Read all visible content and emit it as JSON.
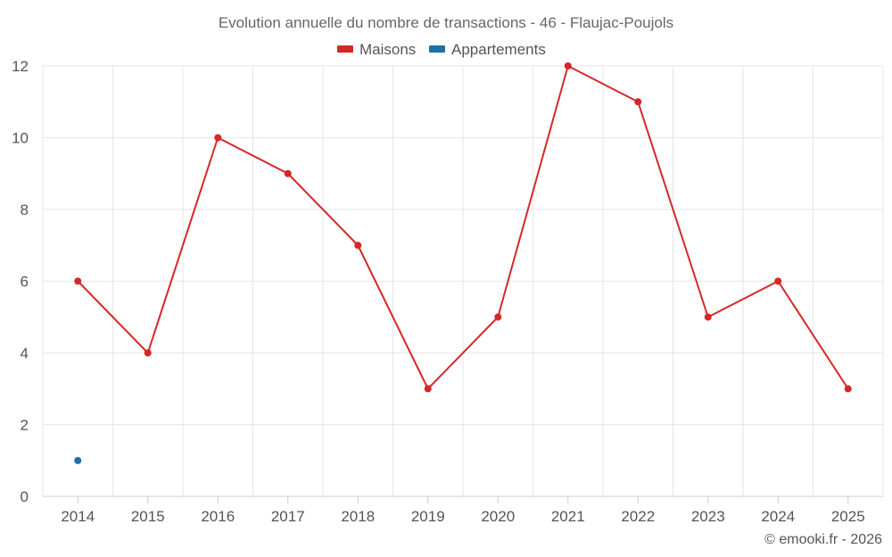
{
  "chart_data": {
    "type": "line",
    "title": "Evolution annuelle du nombre de transactions - 46 - Flaujac-Poujols",
    "categories": [
      "2014",
      "2015",
      "2016",
      "2017",
      "2018",
      "2019",
      "2020",
      "2021",
      "2022",
      "2023",
      "2024",
      "2025"
    ],
    "series": [
      {
        "name": "Maisons",
        "color": "#d62728",
        "values": [
          6,
          4,
          10,
          9,
          7,
          3,
          5,
          12,
          11,
          5,
          6,
          3
        ]
      },
      {
        "name": "Appartements",
        "color": "#1f6fa8",
        "values": [
          1,
          null,
          null,
          null,
          null,
          null,
          null,
          null,
          null,
          null,
          null,
          null
        ]
      }
    ],
    "ylim": [
      0,
      12
    ],
    "yticks": [
      0,
      2,
      4,
      6,
      8,
      10,
      12
    ],
    "grid": true,
    "legend_position": "top-center",
    "credit": "© emooki.fr - 2026"
  }
}
